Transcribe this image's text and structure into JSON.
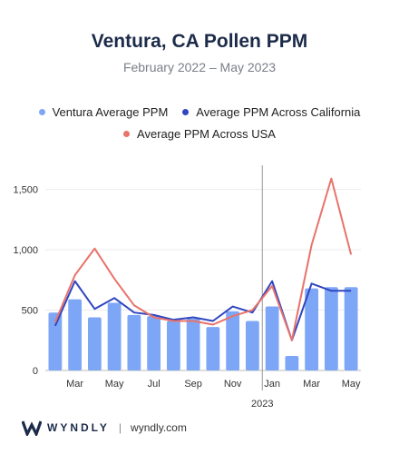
{
  "header": {
    "title": "Ventura, CA Pollen PPM",
    "subtitle": "February 2022 – May 2023"
  },
  "legend": [
    {
      "label": "Ventura Average PPM",
      "color": "#7ea6f7"
    },
    {
      "label": "Average PPM Across California",
      "color": "#3046c0"
    },
    {
      "label": "Average PPM Across USA",
      "color": "#e8736b"
    }
  ],
  "footer": {
    "brand": "WYNDLY",
    "url": "wyndly.com"
  },
  "chart_data": {
    "type": "bar",
    "title": "Ventura, CA Pollen PPM",
    "subtitle": "February 2022 – May 2023",
    "x": [
      "Feb 2022",
      "Mar 2022",
      "Apr 2022",
      "May 2022",
      "Jun 2022",
      "Jul 2022",
      "Aug 2022",
      "Sep 2022",
      "Oct 2022",
      "Nov 2022",
      "Dec 2022",
      "Jan 2023",
      "Feb 2023",
      "Mar 2023",
      "Apr 2023",
      "May 2023"
    ],
    "tick_labels": [
      "",
      "Mar",
      "",
      "May",
      "",
      "Jul",
      "",
      "Sep",
      "",
      "Nov",
      "",
      "Jan",
      "",
      "Mar",
      "",
      "May"
    ],
    "year_marker": {
      "label": "2023",
      "index": 11
    },
    "ylim": [
      0,
      1700
    ],
    "yticks": [
      0,
      500,
      1000,
      1500
    ],
    "ytick_labels": [
      "0",
      "500",
      "1,000",
      "1,500"
    ],
    "grid": true,
    "legend_position": "top",
    "series": [
      {
        "name": "Ventura Average PPM",
        "type": "bar",
        "color": "#7ea6f7",
        "values": [
          480,
          590,
          440,
          560,
          460,
          450,
          410,
          430,
          360,
          490,
          410,
          530,
          120,
          680,
          690,
          690
        ]
      },
      {
        "name": "Average PPM Across California",
        "type": "line",
        "color": "#3046c0",
        "values": [
          370,
          740,
          510,
          600,
          480,
          460,
          420,
          440,
          410,
          530,
          480,
          740,
          250,
          720,
          660,
          660
        ]
      },
      {
        "name": "Average PPM Across USA",
        "type": "line",
        "color": "#e8736b",
        "values": [
          400,
          790,
          1010,
          760,
          540,
          440,
          410,
          410,
          380,
          450,
          500,
          700,
          250,
          1040,
          1590,
          960
        ]
      }
    ]
  }
}
